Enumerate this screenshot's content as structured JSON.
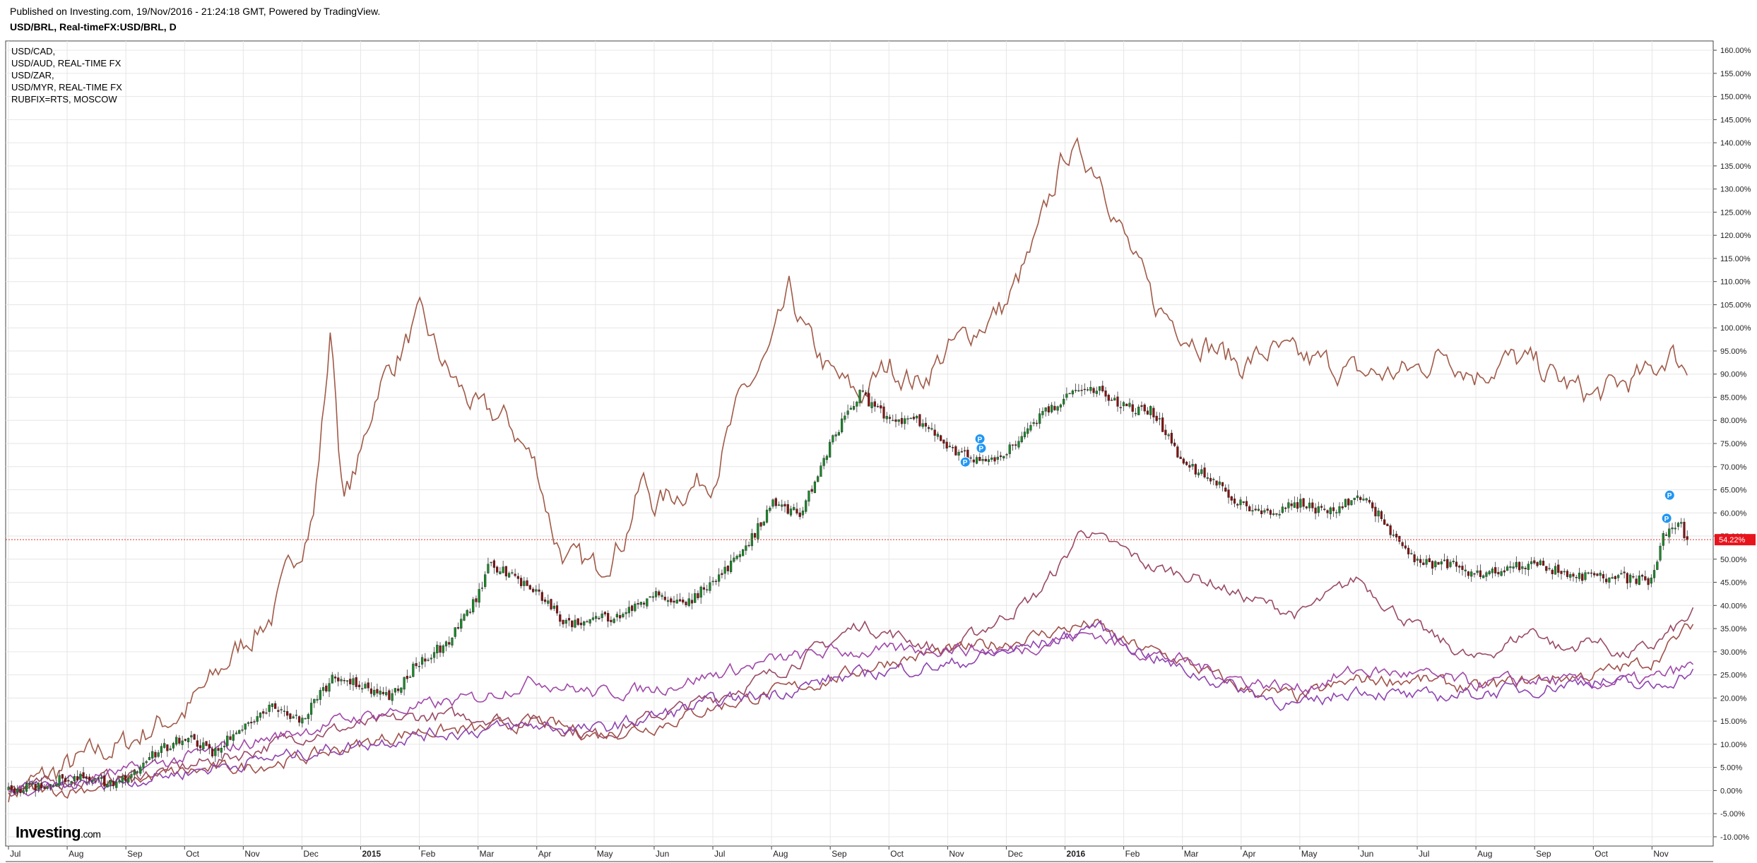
{
  "header": {
    "published": "Published on Investing.com, 19/Nov/2016 - 21:24:18 GMT, Powered by TradingView.",
    "symbol": "USD/BRL, Real-timeFX:USD/BRL, D"
  },
  "legend": {
    "items": [
      "USD/CAD,",
      "USD/AUD, REAL-TIME FX",
      "USD/ZAR,",
      "USD/MYR, REAL-TIME FX",
      "RUBFIX=RTS, MOSCOW"
    ]
  },
  "logo": {
    "brand": "Investing",
    "suffix": ".com"
  },
  "chart_data": {
    "type": "line",
    "title": "USD/BRL, Real-timeFX:USD/BRL, D",
    "ylabel": "",
    "ylim": [
      -12,
      162
    ],
    "y_ticks": [
      "160.00%",
      "155.00%",
      "150.00%",
      "145.00%",
      "140.00%",
      "135.00%",
      "130.00%",
      "125.00%",
      "120.00%",
      "115.00%",
      "110.00%",
      "105.00%",
      "100.00%",
      "95.00%",
      "90.00%",
      "85.00%",
      "80.00%",
      "75.00%",
      "70.00%",
      "65.00%",
      "60.00%",
      "55.00%",
      "50.00%",
      "45.00%",
      "40.00%",
      "35.00%",
      "30.00%",
      "25.00%",
      "20.00%",
      "15.00%",
      "10.00%",
      "5.00%",
      "0.00%",
      "-5.00%",
      "-10.00%"
    ],
    "x_ticks": [
      {
        "label": "Jul",
        "month": 0
      },
      {
        "label": "Aug",
        "month": 1
      },
      {
        "label": "Sep",
        "month": 2
      },
      {
        "label": "Oct",
        "month": 3
      },
      {
        "label": "Nov",
        "month": 4
      },
      {
        "label": "Dec",
        "month": 5
      },
      {
        "label": "2015",
        "month": 6
      },
      {
        "label": "Feb",
        "month": 7
      },
      {
        "label": "Mar",
        "month": 8
      },
      {
        "label": "Apr",
        "month": 9
      },
      {
        "label": "May",
        "month": 10
      },
      {
        "label": "Jun",
        "month": 11
      },
      {
        "label": "Jul",
        "month": 12
      },
      {
        "label": "Aug",
        "month": 13
      },
      {
        "label": "Sep",
        "month": 14
      },
      {
        "label": "Oct",
        "month": 15
      },
      {
        "label": "Nov",
        "month": 16
      },
      {
        "label": "Dec",
        "month": 17
      },
      {
        "label": "2016",
        "month": 18
      },
      {
        "label": "Feb",
        "month": 19
      },
      {
        "label": "Mar",
        "month": 20
      },
      {
        "label": "Apr",
        "month": 21
      },
      {
        "label": "May",
        "month": 22
      },
      {
        "label": "Jun",
        "month": 23
      },
      {
        "label": "Jul",
        "month": 24
      },
      {
        "label": "Aug",
        "month": 25
      },
      {
        "label": "Sep",
        "month": 26
      },
      {
        "label": "Oct",
        "month": 27
      },
      {
        "label": "Nov",
        "month": 28
      }
    ],
    "x_range_months": [
      0,
      28.85
    ],
    "grid": true,
    "last_value_label": "54.22%",
    "last_value": 54.22,
    "main_series": {
      "name": "USD/BRL",
      "style": "candles",
      "points": [
        [
          0,
          0
        ],
        [
          0.5,
          1
        ],
        [
          1,
          3
        ],
        [
          1.5,
          2
        ],
        [
          2,
          2
        ],
        [
          2.5,
          8
        ],
        [
          3,
          12
        ],
        [
          3.5,
          8
        ],
        [
          4,
          14
        ],
        [
          4.5,
          18
        ],
        [
          5,
          15
        ],
        [
          5.5,
          24
        ],
        [
          6,
          23
        ],
        [
          6.5,
          20
        ],
        [
          7,
          28
        ],
        [
          7.5,
          32
        ],
        [
          8,
          42
        ],
        [
          8.2,
          49
        ],
        [
          8.5,
          47
        ],
        [
          9,
          43
        ],
        [
          9.5,
          36
        ],
        [
          10,
          37
        ],
        [
          10.5,
          38
        ],
        [
          11,
          43
        ],
        [
          11.5,
          40
        ],
        [
          12,
          45
        ],
        [
          12.5,
          51
        ],
        [
          13,
          62
        ],
        [
          13.5,
          60
        ],
        [
          14,
          75
        ],
        [
          14.5,
          86
        ],
        [
          15,
          80
        ],
        [
          15.5,
          80
        ],
        [
          16,
          74
        ],
        [
          16.5,
          71
        ],
        [
          17,
          73
        ],
        [
          17.5,
          80
        ],
        [
          18,
          85
        ],
        [
          18.5,
          87
        ],
        [
          19,
          83
        ],
        [
          19.5,
          82
        ],
        [
          20,
          71
        ],
        [
          20.5,
          67
        ],
        [
          21,
          62
        ],
        [
          21.5,
          60
        ],
        [
          22,
          62
        ],
        [
          22.5,
          60
        ],
        [
          23,
          64
        ],
        [
          23.3,
          60
        ],
        [
          23.5,
          57
        ],
        [
          24,
          49
        ],
        [
          24.5,
          49
        ],
        [
          25,
          47
        ],
        [
          25.5,
          48
        ],
        [
          26,
          49
        ],
        [
          26.5,
          47
        ],
        [
          27,
          46
        ],
        [
          27.5,
          46
        ],
        [
          28,
          45
        ],
        [
          28.2,
          56
        ],
        [
          28.5,
          57
        ],
        [
          28.6,
          54
        ]
      ]
    },
    "series": [
      {
        "color": "#a05a48",
        "points": [
          [
            0,
            0
          ],
          [
            0.5,
            2
          ],
          [
            1,
            5
          ],
          [
            1.5,
            8
          ],
          [
            2,
            10
          ],
          [
            2.5,
            14
          ],
          [
            3,
            17
          ],
          [
            3.5,
            24
          ],
          [
            4,
            32
          ],
          [
            4.5,
            38
          ],
          [
            4.8,
            48
          ],
          [
            5,
            54
          ],
          [
            5.2,
            60
          ],
          [
            5.5,
            100
          ],
          [
            5.7,
            62
          ],
          [
            6,
            72
          ],
          [
            6.3,
            88
          ],
          [
            6.6,
            93
          ],
          [
            7,
            102
          ],
          [
            7.5,
            90
          ],
          [
            8,
            82
          ],
          [
            8.5,
            80
          ],
          [
            9,
            70
          ],
          [
            9.3,
            55
          ],
          [
            9.5,
            50
          ],
          [
            10,
            48
          ],
          [
            10.5,
            55
          ],
          [
            10.8,
            67
          ],
          [
            11,
            62
          ],
          [
            11.5,
            65
          ],
          [
            12,
            68
          ],
          [
            12.5,
            85
          ],
          [
            13,
            95
          ],
          [
            13.3,
            107
          ],
          [
            13.6,
            98
          ],
          [
            14,
            90
          ],
          [
            14.5,
            85
          ],
          [
            15,
            92
          ],
          [
            15.5,
            88
          ],
          [
            16,
            95
          ],
          [
            16.5,
            100
          ],
          [
            17,
            105
          ],
          [
            17.5,
            118
          ],
          [
            18,
            138
          ],
          [
            18.3,
            137
          ],
          [
            18.6,
            134
          ],
          [
            19,
            120
          ],
          [
            19.5,
            105
          ],
          [
            20,
            100
          ],
          [
            20.5,
            96
          ],
          [
            21,
            92
          ],
          [
            21.5,
            95
          ],
          [
            22,
            93
          ],
          [
            22.5,
            92
          ],
          [
            23,
            90
          ],
          [
            23.5,
            90
          ],
          [
            24,
            91
          ],
          [
            24.5,
            95
          ],
          [
            25,
            90
          ],
          [
            25.5,
            93
          ],
          [
            26,
            92
          ],
          [
            26.5,
            88
          ],
          [
            27,
            85
          ],
          [
            27.5,
            88
          ],
          [
            28,
            90
          ],
          [
            28.3,
            95
          ],
          [
            28.6,
            91
          ]
        ]
      },
      {
        "color": "#9a4a64",
        "points": [
          [
            0,
            0
          ],
          [
            1,
            2
          ],
          [
            2,
            3
          ],
          [
            3,
            5
          ],
          [
            4,
            8
          ],
          [
            5,
            12
          ],
          [
            6,
            14
          ],
          [
            7,
            16
          ],
          [
            8,
            16
          ],
          [
            9,
            15
          ],
          [
            10,
            12
          ],
          [
            11,
            16
          ],
          [
            12,
            20
          ],
          [
            13,
            25
          ],
          [
            14,
            32
          ],
          [
            14.5,
            36
          ],
          [
            15,
            34
          ],
          [
            16,
            30
          ],
          [
            17,
            38
          ],
          [
            17.5,
            42
          ],
          [
            18,
            50
          ],
          [
            18.3,
            57
          ],
          [
            18.6,
            54
          ],
          [
            19,
            52
          ],
          [
            19.5,
            48
          ],
          [
            20,
            47
          ],
          [
            20.5,
            45
          ],
          [
            21,
            42
          ],
          [
            22,
            38
          ],
          [
            22.5,
            42
          ],
          [
            23,
            46
          ],
          [
            23.5,
            40
          ],
          [
            24,
            35
          ],
          [
            25,
            28
          ],
          [
            26,
            35
          ],
          [
            26.5,
            30
          ],
          [
            27,
            33
          ],
          [
            27.5,
            29
          ],
          [
            28,
            31
          ],
          [
            28.5,
            36
          ],
          [
            28.7,
            38
          ]
        ]
      },
      {
        "color": "#a0504a",
        "points": [
          [
            0,
            0
          ],
          [
            1,
            0
          ],
          [
            2,
            2
          ],
          [
            3,
            4
          ],
          [
            4,
            5
          ],
          [
            5,
            7
          ],
          [
            6,
            10
          ],
          [
            7,
            13
          ],
          [
            8,
            13
          ],
          [
            9,
            15
          ],
          [
            10,
            12
          ],
          [
            11,
            14
          ],
          [
            12,
            18
          ],
          [
            13,
            21
          ],
          [
            14,
            24
          ],
          [
            15,
            28
          ],
          [
            16,
            30
          ],
          [
            17,
            32
          ],
          [
            18,
            35
          ],
          [
            18.5,
            36
          ],
          [
            19,
            32
          ],
          [
            20,
            28
          ],
          [
            21,
            22
          ],
          [
            22,
            20
          ],
          [
            23,
            24
          ],
          [
            24,
            24
          ],
          [
            25,
            22
          ],
          [
            26,
            24
          ],
          [
            27,
            25
          ],
          [
            28,
            28
          ],
          [
            28.7,
            36
          ]
        ]
      },
      {
        "color": "#a048a8",
        "points": [
          [
            0,
            0
          ],
          [
            1,
            2
          ],
          [
            2,
            4
          ],
          [
            3,
            7
          ],
          [
            4,
            10
          ],
          [
            5,
            13
          ],
          [
            6,
            16
          ],
          [
            7,
            18
          ],
          [
            8,
            20
          ],
          [
            9,
            24
          ],
          [
            10,
            21
          ],
          [
            11,
            22
          ],
          [
            12,
            25
          ],
          [
            13,
            28
          ],
          [
            14,
            30
          ],
          [
            15,
            30
          ],
          [
            16,
            31
          ],
          [
            17,
            30
          ],
          [
            18,
            33
          ],
          [
            18.5,
            34
          ],
          [
            19,
            31
          ],
          [
            20,
            28
          ],
          [
            21,
            24
          ],
          [
            22,
            22
          ],
          [
            23,
            26
          ],
          [
            24,
            25
          ],
          [
            25,
            23
          ],
          [
            26,
            24
          ],
          [
            27,
            23
          ],
          [
            28,
            24
          ],
          [
            28.7,
            27
          ]
        ]
      },
      {
        "color": "#8e44b0",
        "points": [
          [
            0,
            0
          ],
          [
            1,
            1
          ],
          [
            2,
            2
          ],
          [
            3,
            4
          ],
          [
            4,
            6
          ],
          [
            5,
            8
          ],
          [
            6,
            10
          ],
          [
            7,
            12
          ],
          [
            8,
            13
          ],
          [
            9,
            14
          ],
          [
            10,
            13
          ],
          [
            11,
            16
          ],
          [
            12,
            19
          ],
          [
            13,
            21
          ],
          [
            14,
            24
          ],
          [
            15,
            26
          ],
          [
            16,
            27
          ],
          [
            17,
            30
          ],
          [
            18,
            33
          ],
          [
            18.5,
            36
          ],
          [
            19,
            32
          ],
          [
            20,
            26
          ],
          [
            21,
            22
          ],
          [
            22,
            18
          ],
          [
            23,
            22
          ],
          [
            24,
            20
          ],
          [
            25,
            21
          ],
          [
            26,
            22
          ],
          [
            27,
            24
          ],
          [
            28,
            22
          ],
          [
            28.7,
            26
          ]
        ]
      }
    ]
  }
}
